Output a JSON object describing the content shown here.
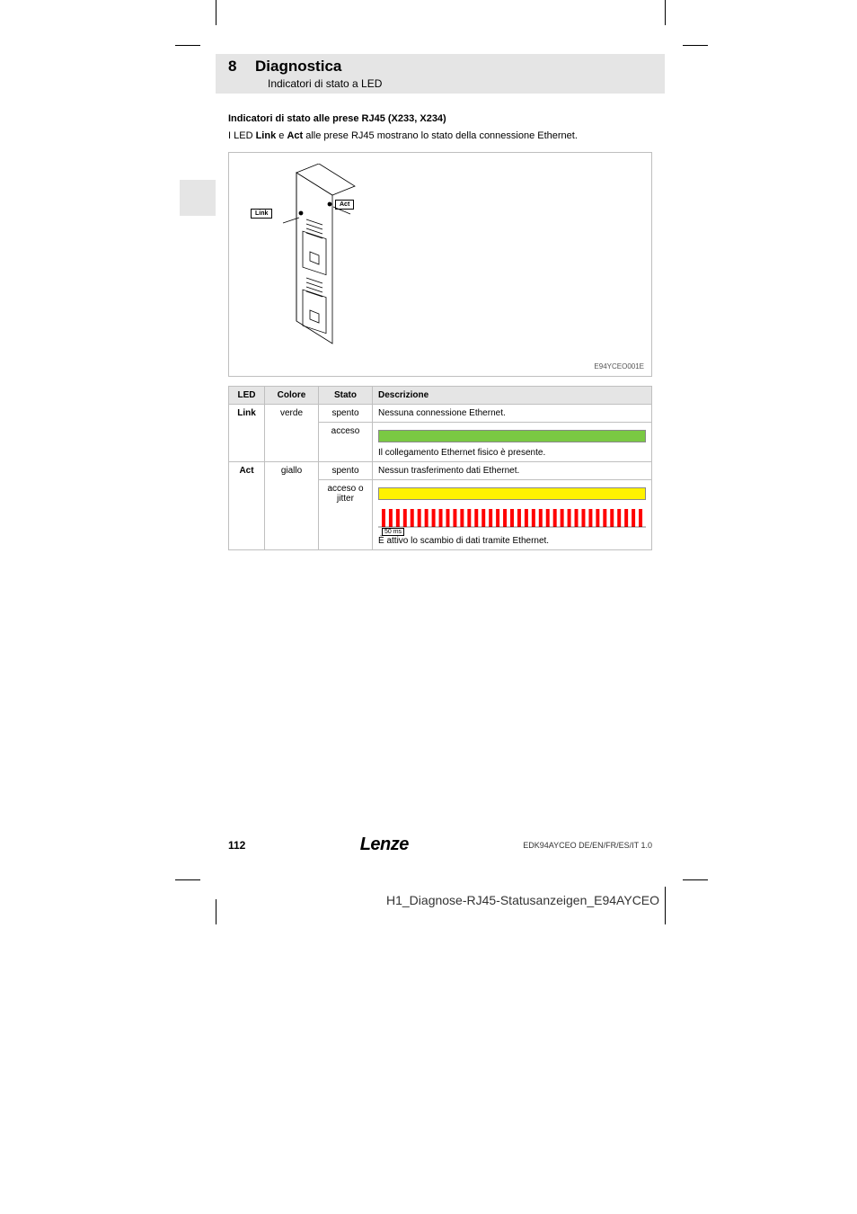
{
  "chapter": {
    "number": "8",
    "title": "Diagnostica",
    "subtitle": "Indicatori di stato a LED"
  },
  "section": {
    "heading": "Indicatori di stato alle prese RJ45 (X233, X234)",
    "intro_prefix": "I LED ",
    "intro_b1": "Link",
    "intro_mid1": " e ",
    "intro_b2": "Act",
    "intro_suffix": " alle prese RJ45 mostrano lo stato della connessione Ethernet."
  },
  "figure": {
    "label_link": "Link",
    "label_act": "Act",
    "caption": "E94YCEO001E"
  },
  "table": {
    "headers": {
      "led": "LED",
      "color": "Colore",
      "state": "Stato",
      "desc": "Descrizione"
    },
    "rows": [
      {
        "led": "Link",
        "color": "verde",
        "state": "spento",
        "desc": "Nessuna connessione Ethernet."
      },
      {
        "state": "acceso",
        "desc_after": "Il collegamento Ethernet fisico è presente.",
        "bar_color": "#7ac943"
      },
      {
        "led": "Act",
        "color": "giallo",
        "state": "spento",
        "desc": "Nessun trasferimento dati Ethernet."
      },
      {
        "state": "acceso o jitter",
        "desc_after": "È attivo lo scambio di dati tramite Ethernet.",
        "bar_color": "#fff200",
        "pulse_color": "#ff0000",
        "pulse_label": "50 ms"
      }
    ]
  },
  "footer": {
    "page": "112",
    "brand": "Lenze",
    "doc": "EDK94AYCEO  DE/EN/FR/ES/IT  1.0"
  },
  "bottom_note": "H1_Diagnose-RJ45-Statusanzeigen_E94AYCEO"
}
